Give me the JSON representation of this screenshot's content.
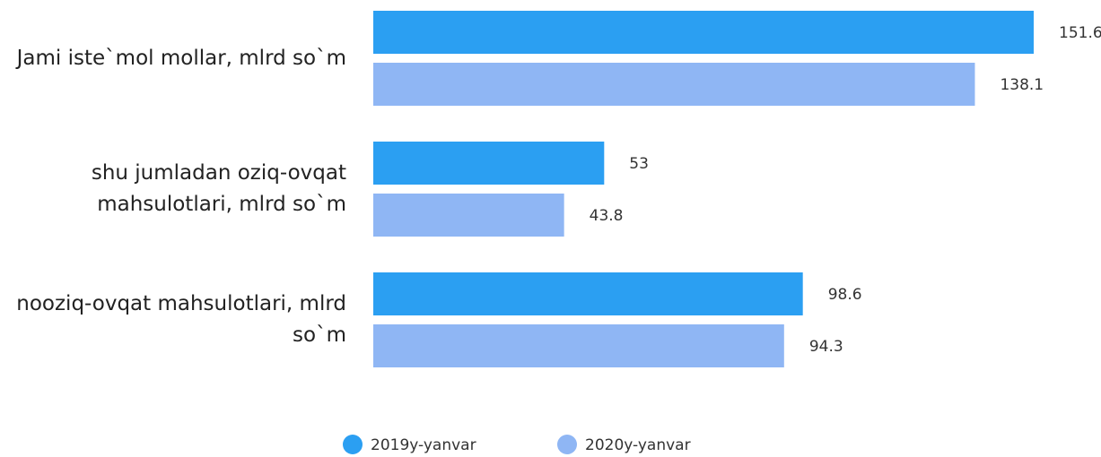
{
  "chart_data": {
    "type": "bar",
    "orientation": "horizontal",
    "categories": [
      "Jami iste`mol mollar, mlrd so`m",
      "shu jumladan oziq-ovqat mahsulotlari, mlrd so`m",
      "nooziq-ovqat mahsulotlari, mlrd so`m"
    ],
    "series": [
      {
        "name": "2019y-yanvar",
        "color": "#2b9ff2",
        "values": [
          151.6,
          53,
          98.6
        ]
      },
      {
        "name": "2020y-yanvar",
        "color": "#8fb6f4",
        "values": [
          138.1,
          43.8,
          94.3
        ]
      }
    ],
    "legend": "bottom"
  }
}
